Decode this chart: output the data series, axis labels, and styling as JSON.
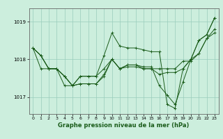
{
  "xlabel": "Graphe pression niveau de la mer (hPa)",
  "ylabel": "",
  "bg_color": "#cceedd",
  "grid_color": "#99ccbb",
  "line_color": "#1a5c1a",
  "ylim": [
    1016.55,
    1019.35
  ],
  "xlim": [
    -0.5,
    23.5
  ],
  "yticks": [
    1017,
    1018,
    1019
  ],
  "xticks": [
    0,
    1,
    2,
    3,
    4,
    5,
    6,
    7,
    8,
    9,
    10,
    11,
    12,
    13,
    14,
    15,
    16,
    17,
    18,
    19,
    20,
    21,
    22,
    23
  ],
  "series": [
    [
      1018.3,
      1018.1,
      1017.75,
      1017.75,
      1017.55,
      1017.3,
      1017.55,
      1017.55,
      1017.55,
      1017.75,
      1018.0,
      1017.75,
      1017.85,
      1017.85,
      1017.8,
      1017.8,
      1017.3,
      1017.05,
      1016.8,
      1017.4,
      1018.0,
      1018.5,
      1018.65,
      1019.1
    ],
    [
      1018.3,
      1017.75,
      1017.75,
      1017.75,
      1017.3,
      1017.3,
      1017.35,
      1017.35,
      1017.35,
      1017.6,
      1018.0,
      1017.75,
      1017.85,
      1017.85,
      1017.75,
      1017.75,
      1017.6,
      1017.65,
      1017.65,
      1017.75,
      1018.0,
      1018.15,
      1018.55,
      1018.8
    ],
    [
      1018.3,
      1018.1,
      1017.75,
      1017.75,
      1017.55,
      1017.3,
      1017.55,
      1017.55,
      1017.55,
      1018.1,
      1018.7,
      1018.35,
      1018.3,
      1018.3,
      1018.25,
      1018.2,
      1018.2,
      1016.8,
      1016.7,
      1017.75,
      1018.0,
      1018.5,
      1018.65,
      1019.1
    ],
    [
      1018.3,
      1018.1,
      1017.75,
      1017.75,
      1017.55,
      1017.3,
      1017.35,
      1017.35,
      1017.35,
      1017.55,
      1018.0,
      1017.75,
      1017.8,
      1017.8,
      1017.75,
      1017.75,
      1017.75,
      1017.75,
      1017.75,
      1017.95,
      1017.95,
      1018.15,
      1018.55,
      1018.7
    ]
  ]
}
